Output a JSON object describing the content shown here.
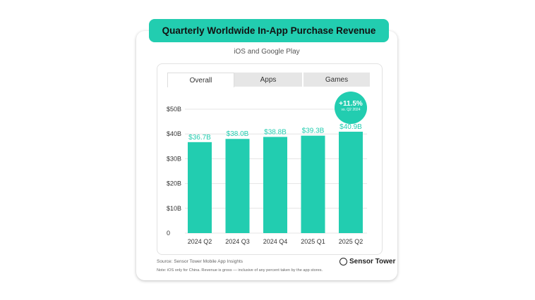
{
  "title": "Quarterly Worldwide In-App Purchase Revenue",
  "subtitle": "iOS and Google Play",
  "tabs": [
    {
      "label": "Overall",
      "selected": true
    },
    {
      "label": "Apps",
      "selected": false
    },
    {
      "label": "Games",
      "selected": false
    }
  ],
  "badge": {
    "value": "+11.5%",
    "caption": "vs. Q2 2024"
  },
  "footer": {
    "source": "Source: Sensor Tower Mobile App Insights",
    "note": "Note: iOS only for China. Revenue is gross — inclusive of any percent taken by the app stores.",
    "brand": "Sensor Tower"
  },
  "colors": {
    "bar": "#22cdb0",
    "label": "#22cdb0"
  },
  "chart_data": {
    "type": "bar",
    "categories": [
      "2024 Q2",
      "2024 Q3",
      "2024 Q4",
      "2025 Q1",
      "2025 Q2"
    ],
    "values": [
      36.7,
      38.0,
      38.8,
      39.3,
      40.9
    ],
    "data_labels": [
      "$36.7B",
      "$38.0B",
      "$38.8B",
      "$39.3B",
      "$40.9B"
    ],
    "ytick_labels": [
      "0",
      "$10B",
      "$20B",
      "$30B",
      "$40B",
      "$50B"
    ],
    "yticks": [
      0,
      10,
      20,
      30,
      40,
      50
    ],
    "ylim": [
      0,
      50
    ],
    "grid": true
  }
}
